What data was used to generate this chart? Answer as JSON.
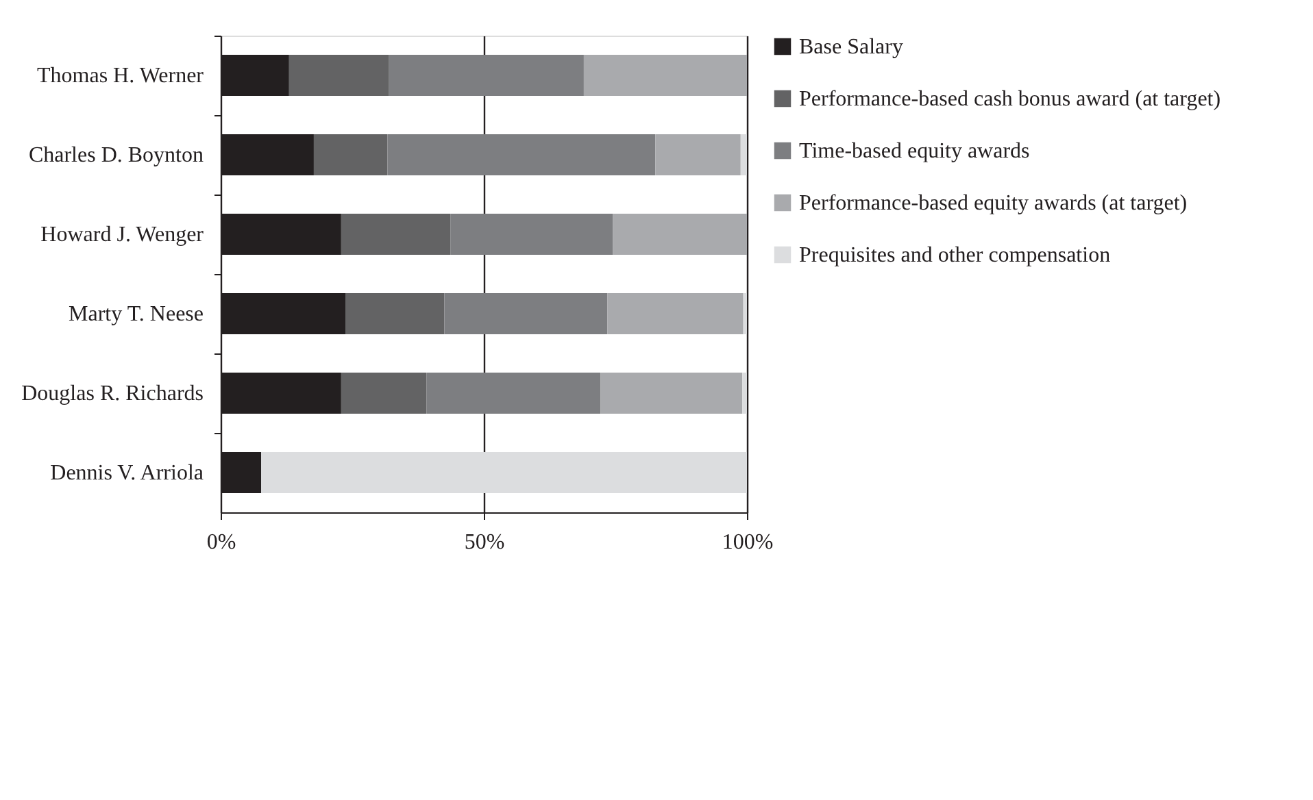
{
  "chart_data": {
    "type": "bar",
    "orientation": "horizontal",
    "stacked": true,
    "categories": [
      "Thomas H. Werner",
      "Charles D. Boynton",
      "Howard J. Wenger",
      "Marty T. Neese",
      "Douglas R. Richards",
      "Dennis V. Arriola"
    ],
    "series": [
      {
        "name": "Base Salary",
        "color": "#231f20",
        "values": [
          13.0,
          17.7,
          22.9,
          23.7,
          22.9,
          7.7
        ]
      },
      {
        "name": "Performance-based cash bonus award (at target)",
        "color": "#636364",
        "values": [
          19.0,
          14.0,
          20.8,
          18.8,
          16.2,
          0
        ]
      },
      {
        "name": "Time-based equity awards",
        "color": "#7d7e81",
        "values": [
          37.0,
          50.9,
          30.8,
          31.0,
          33.1,
          0
        ]
      },
      {
        "name": "Performance-based equity awards (at target)",
        "color": "#a9aaad",
        "values": [
          31.0,
          16.2,
          25.5,
          25.8,
          26.9,
          0
        ]
      },
      {
        "name": "Prequisites and other compensation",
        "color": "#dcdddf",
        "values": [
          0,
          1.2,
          0,
          0.7,
          0.9,
          92.3
        ]
      }
    ],
    "xlim": [
      0,
      100
    ],
    "xticks": [
      {
        "value": 0,
        "label": "0%"
      },
      {
        "value": 50,
        "label": "50%"
      },
      {
        "value": 100,
        "label": "100%"
      }
    ],
    "grid": "x",
    "legend": "right"
  }
}
